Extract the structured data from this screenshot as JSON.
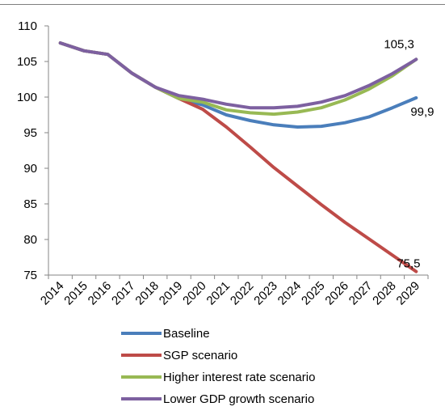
{
  "chart_data": {
    "type": "line",
    "title": "",
    "xlabel": "",
    "ylabel": "",
    "ylim": [
      75,
      110
    ],
    "y_ticks": [
      75,
      80,
      85,
      90,
      95,
      100,
      105,
      110
    ],
    "grid": false,
    "legend_position": "bottom",
    "categories": [
      "2014",
      "2015",
      "2016",
      "2017",
      "2018",
      "2019",
      "2020",
      "2021",
      "2022",
      "2023",
      "2024",
      "2025",
      "2026",
      "2027",
      "2028",
      "2029"
    ],
    "series": [
      {
        "name": "Baseline",
        "color": "#4a7ebb",
        "values": [
          107.6,
          106.5,
          106.0,
          103.4,
          101.4,
          99.8,
          98.9,
          97.5,
          96.7,
          96.1,
          95.8,
          95.9,
          96.4,
          97.2,
          98.5,
          99.9
        ]
      },
      {
        "name": "SGP scenario",
        "color": "#be4b48",
        "values": [
          107.6,
          106.5,
          106.0,
          103.4,
          101.4,
          99.8,
          98.3,
          95.8,
          93.0,
          90.1,
          87.5,
          84.9,
          82.4,
          80.1,
          77.8,
          75.5
        ]
      },
      {
        "name": "Higher interest rate scenario",
        "color": "#98b954",
        "values": [
          107.6,
          106.5,
          106.0,
          103.4,
          101.4,
          99.8,
          99.3,
          98.2,
          97.8,
          97.6,
          97.9,
          98.5,
          99.6,
          101.1,
          103.0,
          105.3
        ]
      },
      {
        "name": "Lower GDP growth scenario",
        "color": "#7d60a0",
        "values": [
          107.6,
          106.5,
          106.0,
          103.4,
          101.4,
          100.2,
          99.7,
          99.0,
          98.5,
          98.5,
          98.7,
          99.3,
          100.2,
          101.6,
          103.3,
          105.3
        ]
      }
    ],
    "annotations": [
      {
        "series": "Lower GDP growth scenario",
        "category": "2029",
        "text": "105,3"
      },
      {
        "series": "Baseline",
        "category": "2029",
        "text": "99,9"
      },
      {
        "series": "SGP scenario",
        "category": "2029",
        "text": "75,5"
      }
    ]
  }
}
